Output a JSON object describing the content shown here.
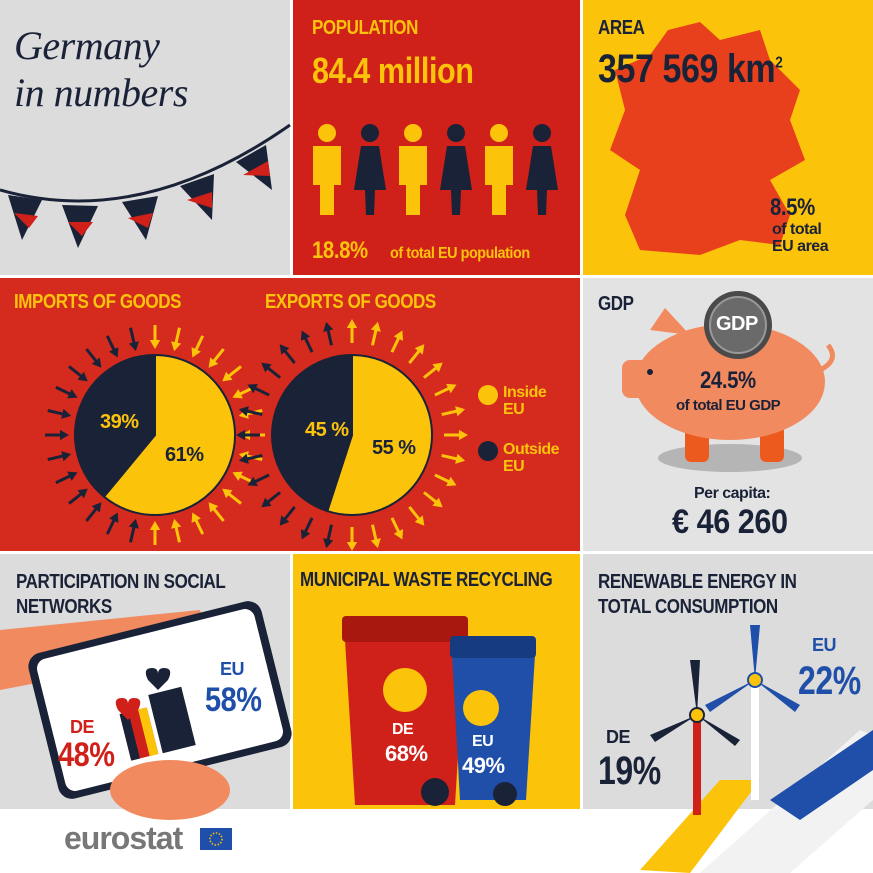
{
  "header": {
    "title_line1": "Germany",
    "title_line2": "in numbers"
  },
  "population": {
    "heading": "POPULATION",
    "value": "84.4 million",
    "share": "18.8%",
    "share_text": "of total EU population"
  },
  "area": {
    "heading": "AREA",
    "value": "357 569 km",
    "value_sup": "2",
    "share": "8.5%",
    "share_text": "of total EU area"
  },
  "trade": {
    "imports": {
      "heading": "IMPORTS OF GOODS",
      "outside": {
        "value": 39,
        "label": "39%"
      },
      "inside": {
        "value": 61,
        "label": "61%"
      }
    },
    "exports": {
      "heading": "EXPORTS OF GOODS",
      "outside": {
        "value": 45,
        "label": "45 %"
      },
      "inside": {
        "value": 55,
        "label": "55 %"
      }
    },
    "legend": {
      "inside": "Inside EU",
      "outside": "Outside EU"
    }
  },
  "gdp": {
    "heading": "GDP",
    "coin": "GDP",
    "share": "24.5%",
    "share_text": "of total EU GDP",
    "per_capita_label": "Per capita:",
    "per_capita": "€ 46 260"
  },
  "social": {
    "heading": "PARTICIPATION IN SOCIAL NETWORKS",
    "de_label": "DE",
    "de": "48%",
    "eu_label": "EU",
    "eu": "58%"
  },
  "waste": {
    "heading": "MUNICIPAL WASTE RECYCLING",
    "de_label": "DE",
    "de": "68%",
    "eu_label": "EU",
    "eu": "49%"
  },
  "renewable": {
    "heading": "RENEWABLE ENERGY IN TOTAL CONSUMPTION",
    "de_label": "DE",
    "de": "19%",
    "eu_label": "EU",
    "eu": "22%"
  },
  "footer": {
    "logo": "eurostat"
  }
}
